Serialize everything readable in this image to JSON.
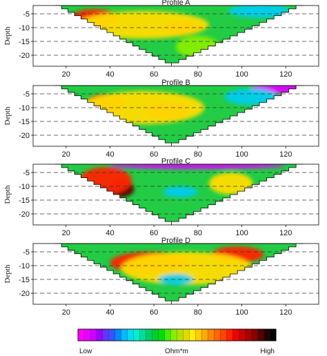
{
  "chart_data": [
    {
      "type": "heatmap",
      "title": "Profile A",
      "ylabel": "Depth",
      "xlabel": "",
      "xlim": [
        5,
        135
      ],
      "ylim": [
        -24,
        -2
      ],
      "x_ticks": [
        20,
        40,
        60,
        80,
        100,
        120
      ],
      "y_ticks": [
        -5,
        -10,
        -15,
        -20
      ],
      "grid": "dashed horizontal lines at each depth tick",
      "section_outline_x": [
        15,
        68,
        128
      ],
      "section_outline_depth": [
        -2,
        -24,
        -2
      ],
      "anomalies": [
        {
          "level": "high",
          "x": 33,
          "depth": -6.5,
          "rx": 11,
          "rz": 3.2
        },
        {
          "level": "high",
          "x": 73,
          "depth": -10,
          "rx": 9,
          "rz": 2.5
        },
        {
          "level": "mid-high",
          "x": 55,
          "depth": -9,
          "rx": 30,
          "rz": 5
        },
        {
          "level": "mid",
          "x": 80,
          "depth": -17,
          "rx": 10,
          "rz": 4
        },
        {
          "level": "low",
          "x": 108,
          "depth": -4,
          "rx": 14,
          "rz": 2.5
        }
      ]
    },
    {
      "type": "heatmap",
      "title": "Profile B",
      "ylabel": "Depth",
      "xlabel": "",
      "xlim": [
        5,
        135
      ],
      "ylim": [
        -24,
        -2
      ],
      "x_ticks": [
        20,
        40,
        60,
        80,
        100,
        120
      ],
      "y_ticks": [
        -5,
        -10,
        -15,
        -20
      ],
      "grid": "dashed horizontal lines at each depth tick",
      "section_outline_x": [
        15,
        68,
        128
      ],
      "section_outline_depth": [
        -2,
        -24,
        -2
      ],
      "anomalies": [
        {
          "level": "high",
          "x": 38,
          "depth": -8.5,
          "rx": 9,
          "rz": 3.5
        },
        {
          "level": "high",
          "x": 66,
          "depth": -11,
          "rx": 10,
          "rz": 3
        },
        {
          "level": "mid-high",
          "x": 55,
          "depth": -10,
          "rx": 28,
          "rz": 6
        },
        {
          "level": "very-low",
          "x": 118,
          "depth": -3,
          "rx": 14,
          "rz": 2
        },
        {
          "level": "low",
          "x": 104,
          "depth": -6,
          "rx": 12,
          "rz": 3
        }
      ]
    },
    {
      "type": "heatmap",
      "title": "Profile C",
      "ylabel": "Depth",
      "xlabel": "",
      "xlim": [
        5,
        135
      ],
      "ylim": [
        -24,
        -2
      ],
      "x_ticks": [
        20,
        40,
        60,
        80,
        100,
        120
      ],
      "y_ticks": [
        -5,
        -10,
        -15,
        -20
      ],
      "grid": "dashed horizontal lines at each depth tick",
      "section_outline_x": [
        15,
        68,
        128
      ],
      "section_outline_depth": [
        -2,
        -24,
        -2
      ],
      "anomalies": [
        {
          "level": "very-high",
          "x": 45,
          "depth": -11,
          "rx": 6,
          "rz": 3
        },
        {
          "level": "high",
          "x": 38,
          "depth": -8,
          "rx": 12,
          "rz": 5
        },
        {
          "level": "mid-high",
          "x": 95,
          "depth": -9,
          "rx": 10,
          "rz": 4
        },
        {
          "level": "low",
          "x": 72,
          "depth": -12,
          "rx": 8,
          "rz": 2
        },
        {
          "level": "very-low",
          "x": 80,
          "depth": -2.5,
          "rx": 40,
          "rz": 1.2
        }
      ]
    },
    {
      "type": "heatmap",
      "title": "Profile D",
      "ylabel": "Depth",
      "xlabel": "",
      "xlim": [
        5,
        135
      ],
      "ylim": [
        -24,
        -2
      ],
      "x_ticks": [
        20,
        40,
        60,
        80,
        100,
        120
      ],
      "y_ticks": [
        -5,
        -10,
        -15,
        -20
      ],
      "grid": "dashed horizontal lines at each depth tick",
      "section_outline_x": [
        15,
        68,
        128
      ],
      "section_outline_depth": [
        -2,
        -24,
        -2
      ],
      "anomalies": [
        {
          "level": "very-high",
          "x": 63,
          "depth": -7.5,
          "rx": 7,
          "rz": 2.5
        },
        {
          "level": "high",
          "x": 58,
          "depth": -9,
          "rx": 18,
          "rz": 4
        },
        {
          "level": "high",
          "x": 98,
          "depth": -6,
          "rx": 12,
          "rz": 3
        },
        {
          "level": "mid-high",
          "x": 75,
          "depth": -11,
          "rx": 30,
          "rz": 6
        },
        {
          "level": "low",
          "x": 70,
          "depth": -15,
          "rx": 8,
          "rz": 2
        }
      ]
    }
  ],
  "colorbar": {
    "low_label": "Low",
    "unit_label": "Ohm*m",
    "high_label": "High",
    "colors": [
      "#ff00ff",
      "#ee00ff",
      "#cc00ff",
      "#9900ff",
      "#6633ff",
      "#3355ff",
      "#0088ff",
      "#00bbff",
      "#00ddee",
      "#00eecc",
      "#00dd99",
      "#00cc66",
      "#00cc33",
      "#00dd00",
      "#44ee00",
      "#88ee00",
      "#bbdd00",
      "#dddd00",
      "#ffee00",
      "#ffcc00",
      "#ffaa00",
      "#ff8800",
      "#ff6600",
      "#ff4400",
      "#ff2200",
      "#ee0000",
      "#cc0000",
      "#aa0000",
      "#880000",
      "#550000",
      "#220000",
      "#000000"
    ]
  }
}
